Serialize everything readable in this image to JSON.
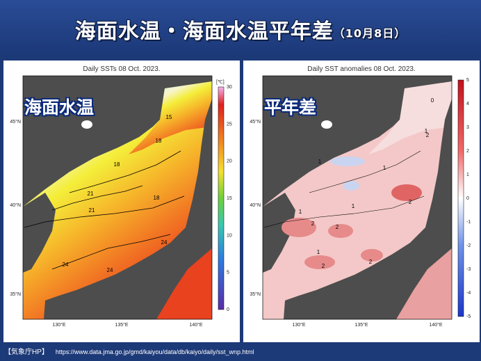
{
  "header": {
    "title": "海面水温・海面水温平年差",
    "date": "（10月8日）"
  },
  "left_panel": {
    "title": "Daily SSTs 08 Oct. 2023.",
    "overlay_label": "海面水温",
    "unit": "[℃]",
    "colorbar_ticks": [
      "30",
      "25",
      "20",
      "15",
      "10",
      "5",
      "0"
    ],
    "lat_labels": [
      "45°N",
      "40°N",
      "35°N"
    ],
    "lon_labels": [
      "130°E",
      "135°E",
      "140°E"
    ],
    "contour_labels": [
      "15",
      "18",
      "18",
      "18",
      "21",
      "21",
      "24",
      "24",
      "24"
    ]
  },
  "right_panel": {
    "title": "Daily SST anomalies 08 Oct. 2023.",
    "overlay_label": "平年差",
    "unit": "[℃]",
    "colorbar_ticks": [
      "5",
      "4",
      "3",
      "2",
      "1",
      "0",
      "-1",
      "-2",
      "-3",
      "-4",
      "-5"
    ],
    "lat_labels": [
      "45°N",
      "40°N",
      "35°N"
    ],
    "lon_labels": [
      "130°E",
      "135°E",
      "140°E"
    ],
    "contour_labels": [
      "0",
      "1",
      "1",
      "1",
      "1",
      "1",
      "2",
      "2",
      "2",
      "1",
      "2",
      "2",
      "2"
    ]
  },
  "footer": {
    "source": "【気象庁HP】",
    "url": "https://www.data.jma.go.jp/gmd/kaiyou/data/db/kaiyo/daily/sst_wnp.html"
  }
}
